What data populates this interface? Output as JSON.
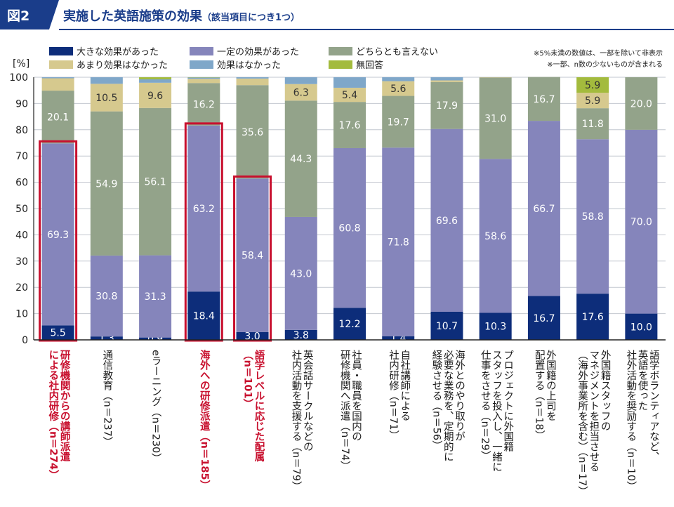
{
  "header": {
    "fig_no": "図2",
    "title": "実施した英語施策の効果",
    "subtitle": "（該当項目につき1つ）"
  },
  "notes": [
    "※5%未満の数値は、一部を除いて非表示",
    "※一部、n数の少ないものが含まれる"
  ],
  "colors": {
    "brand": "#1a3d8a",
    "highlight": "#c8102e",
    "large": "#0d2d7a",
    "some": "#8585bb",
    "neither": "#93a38a",
    "notmuch": "#d6c98e",
    "none": "#7fa7c9",
    "noanswer": "#a3bb3d"
  },
  "chart_data": {
    "type": "bar",
    "stacked": true,
    "y_unit_label": "[%]",
    "ylim": [
      0,
      100
    ],
    "yticks": [
      0,
      10,
      20,
      30,
      40,
      50,
      60,
      70,
      80,
      90,
      100
    ],
    "grid": true,
    "legend_position": "top",
    "series": [
      {
        "name": "大きな効果があった",
        "key": "large",
        "values": [
          5.5,
          1.3,
          0.9,
          18.4,
          3.0,
          3.8,
          12.2,
          1.4,
          10.7,
          10.3,
          16.7,
          17.6,
          10.0
        ]
      },
      {
        "name": "一定の効果があった",
        "key": "some",
        "values": [
          69.3,
          30.8,
          31.3,
          63.2,
          58.4,
          43.0,
          60.8,
          71.8,
          69.6,
          58.6,
          66.7,
          58.8,
          70.0
        ]
      },
      {
        "name": "どちらとも言えない",
        "key": "neither",
        "values": [
          20.1,
          54.9,
          56.1,
          16.2,
          35.6,
          44.3,
          17.6,
          19.7,
          17.9,
          31.0,
          16.7,
          11.8,
          20.0
        ]
      },
      {
        "name": "あまり効果はなかった",
        "key": "notmuch",
        "values": [
          4.7,
          10.5,
          9.6,
          1.6,
          2.5,
          6.3,
          5.4,
          5.6,
          0.6,
          0.1,
          0,
          5.9,
          0
        ]
      },
      {
        "name": "効果はなかった",
        "key": "none",
        "values": [
          0.4,
          2.5,
          1.3,
          0.5,
          0.5,
          2.6,
          4.0,
          1.5,
          1.2,
          0,
          0,
          0,
          0
        ]
      },
      {
        "name": "無回答",
        "key": "noanswer",
        "values": [
          0,
          0,
          0.8,
          0.1,
          0,
          0,
          0,
          0,
          0,
          0,
          0,
          5.9,
          0
        ]
      }
    ],
    "data_labels": [
      [
        "5.5",
        "69.3",
        "20.1",
        "",
        "",
        ""
      ],
      [
        "1.3",
        "30.8",
        "54.9",
        "10.5",
        "",
        ""
      ],
      [
        "0.9",
        "31.3",
        "56.1",
        "9.6",
        "",
        ""
      ],
      [
        "18.4",
        "63.2",
        "16.2",
        "",
        "",
        ""
      ],
      [
        "3.0",
        "58.4",
        "35.6",
        "",
        "",
        ""
      ],
      [
        "3.8",
        "43.0",
        "44.3",
        "6.3",
        "",
        ""
      ],
      [
        "12.2",
        "60.8",
        "17.6",
        "5.4",
        "",
        ""
      ],
      [
        "1.4",
        "71.8",
        "19.7",
        "5.6",
        "",
        ""
      ],
      [
        "10.7",
        "69.6",
        "17.9",
        "",
        "",
        ""
      ],
      [
        "10.3",
        "58.6",
        "31.0",
        "",
        "",
        ""
      ],
      [
        "16.7",
        "66.7",
        "16.7",
        "",
        "",
        ""
      ],
      [
        "17.6",
        "58.8",
        "11.8",
        "5.9",
        "",
        "5.9"
      ],
      [
        "10.0",
        "70.0",
        "20.0",
        "",
        "",
        ""
      ]
    ],
    "highlighted": [
      0,
      3,
      4
    ],
    "categories": [
      {
        "lines": [
          "研修機関からの講師派遣",
          "による社内研修（n＝274）"
        ]
      },
      {
        "lines": [
          "通信教育（n＝237）"
        ]
      },
      {
        "lines": [
          "eラーニング（n＝230）"
        ]
      },
      {
        "lines": [
          "海外への研修派遣（n＝185）"
        ]
      },
      {
        "lines": [
          "語学レベルに応じた配属",
          "（n＝101）"
        ]
      },
      {
        "lines": [
          "英会話サークルなどの",
          "社内活動を支援する（n＝79）"
        ]
      },
      {
        "lines": [
          "社員・職員を国内の",
          "研修機関へ派遣（n＝74）"
        ]
      },
      {
        "lines": [
          "自社講師による",
          "社内研修（n＝71）"
        ]
      },
      {
        "lines": [
          "海外とのやり取りが",
          "必要な業務を、定期的に",
          "経験させる（n＝56）"
        ]
      },
      {
        "lines": [
          "プロジェクトに外国籍",
          "スタッフを投入し、一緒に",
          "仕事をさせる（n＝29）"
        ]
      },
      {
        "lines": [
          "外国籍の上司を",
          "配置する（n＝18）"
        ]
      },
      {
        "lines": [
          "外国籍スタッフの",
          "マネジメントを担当させる",
          "（海外事業所を含む）（n＝17）"
        ]
      },
      {
        "lines": [
          "語学ボランティアなど、",
          "英語を使った",
          "社外活動を奨励する（n＝10）"
        ]
      }
    ]
  }
}
